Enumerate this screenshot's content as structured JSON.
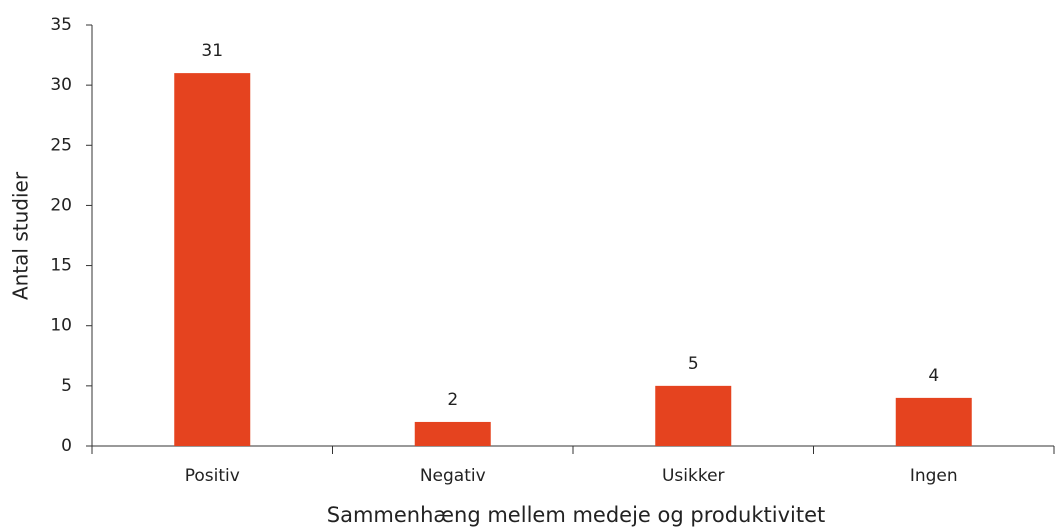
{
  "chart_data": {
    "type": "bar",
    "x_label": "Sammenhæng mellem medeje og produktivitet",
    "y_label": "Antal studier",
    "categories": [
      "Positiv",
      "Negativ",
      "Usikker",
      "Ingen"
    ],
    "values": [
      31,
      2,
      5,
      4
    ],
    "color": "#e5431f",
    "ylim": [
      0,
      35
    ],
    "yticks": [
      0,
      5,
      10,
      15,
      20,
      25,
      30,
      35
    ],
    "grid": false
  }
}
